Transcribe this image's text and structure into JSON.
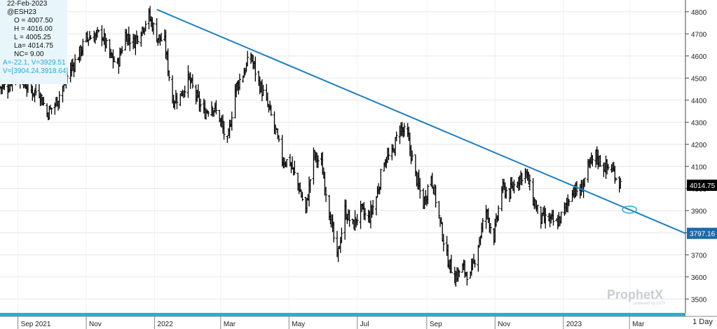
{
  "info_panel": {
    "date": "22-Feb-2023",
    "symbol": "@ESH23",
    "open": "O = 4007.50",
    "high": "H = 4016.00",
    "low": "L = 4005.25",
    "last": "La= 4014.75",
    "net_change": "NC= 9.00",
    "angle_value": "A=-22.1, V=3929.51",
    "value_range": "V=[3904.24,3918.64]"
  },
  "logo": {
    "name": "ProphetX",
    "tagline": "powered by DTN"
  },
  "timeframe_button": {
    "label": "1 Day"
  },
  "colors": {
    "price_bars": "#000000",
    "trendline": "#1b7fc0",
    "price_tag_bg": "#000000",
    "trend_tag_bg": "#1b6aa8",
    "info_panel_bg": "#e8f6fb",
    "bottom_band": "#20b4c8"
  },
  "chart_data": {
    "type": "ohlc",
    "y_axis": {
      "min": 3450,
      "max": 4850,
      "ticks": [
        3500,
        3600,
        3700,
        3800,
        3900,
        4000,
        4100,
        4200,
        4300,
        4400,
        4500,
        4600,
        4700,
        4800
      ],
      "side": "right"
    },
    "x_axis": {
      "ticks": [
        "Sep 2021",
        "Nov",
        "2022",
        "Mar",
        "May",
        "Jul",
        "Sep",
        "Nov",
        "2023",
        "Mar"
      ]
    },
    "last_price_label": "4014.75",
    "trendline_label": "3797.16",
    "trendline": {
      "start": {
        "date": "2022-01-03",
        "value": 4810
      },
      "end": {
        "date": "2023-04-20",
        "value": 3797.16
      }
    },
    "series": [
      {
        "close_path": [
          [
            "2021-08-16",
            4460
          ],
          [
            "2021-08-23",
            4460
          ],
          [
            "2021-08-30",
            4530
          ],
          [
            "2021-09-06",
            4480
          ],
          [
            "2021-09-13",
            4440
          ],
          [
            "2021-09-20",
            4440
          ],
          [
            "2021-09-27",
            4340
          ],
          [
            "2021-10-04",
            4380
          ],
          [
            "2021-10-11",
            4460
          ],
          [
            "2021-10-18",
            4540
          ],
          [
            "2021-10-25",
            4600
          ],
          [
            "2021-11-01",
            4680
          ],
          [
            "2021-11-08",
            4690
          ],
          [
            "2021-11-15",
            4700
          ],
          [
            "2021-11-22",
            4600
          ],
          [
            "2021-11-29",
            4560
          ],
          [
            "2021-12-06",
            4700
          ],
          [
            "2021-12-13",
            4660
          ],
          [
            "2021-12-20",
            4720
          ],
          [
            "2021-12-27",
            4780
          ],
          [
            "2022-01-03",
            4690
          ],
          [
            "2022-01-10",
            4660
          ],
          [
            "2022-01-17",
            4400
          ],
          [
            "2022-01-24",
            4420
          ],
          [
            "2022-01-31",
            4500
          ],
          [
            "2022-02-07",
            4420
          ],
          [
            "2022-02-14",
            4340
          ],
          [
            "2022-02-21",
            4380
          ],
          [
            "2022-02-28",
            4320
          ],
          [
            "2022-03-07",
            4200
          ],
          [
            "2022-03-14",
            4450
          ],
          [
            "2022-03-21",
            4520
          ],
          [
            "2022-03-28",
            4600
          ],
          [
            "2022-04-04",
            4480
          ],
          [
            "2022-04-11",
            4390
          ],
          [
            "2022-04-18",
            4280
          ],
          [
            "2022-04-25",
            4130
          ],
          [
            "2022-05-02",
            4120
          ],
          [
            "2022-05-09",
            4020
          ],
          [
            "2022-05-16",
            3900
          ],
          [
            "2022-05-23",
            4150
          ],
          [
            "2022-05-30",
            4110
          ],
          [
            "2022-06-06",
            3900
          ],
          [
            "2022-06-13",
            3680
          ],
          [
            "2022-06-20",
            3900
          ],
          [
            "2022-06-27",
            3830
          ],
          [
            "2022-07-04",
            3900
          ],
          [
            "2022-07-11",
            3860
          ],
          [
            "2022-07-18",
            3960
          ],
          [
            "2022-07-25",
            4130
          ],
          [
            "2022-08-01",
            4150
          ],
          [
            "2022-08-08",
            4280
          ],
          [
            "2022-08-15",
            4230
          ],
          [
            "2022-08-22",
            4060
          ],
          [
            "2022-08-29",
            3930
          ],
          [
            "2022-09-05",
            4060
          ],
          [
            "2022-09-12",
            3870
          ],
          [
            "2022-09-19",
            3690
          ],
          [
            "2022-09-26",
            3600
          ],
          [
            "2022-10-03",
            3640
          ],
          [
            "2022-10-10",
            3600
          ],
          [
            "2022-10-17",
            3750
          ],
          [
            "2022-10-24",
            3900
          ],
          [
            "2022-10-31",
            3780
          ],
          [
            "2022-11-07",
            4000
          ],
          [
            "2022-11-14",
            3980
          ],
          [
            "2022-11-21",
            4040
          ],
          [
            "2022-11-28",
            4080
          ],
          [
            "2022-12-05",
            3950
          ],
          [
            "2022-12-12",
            3860
          ],
          [
            "2022-12-19",
            3860
          ],
          [
            "2022-12-26",
            3840
          ],
          [
            "2023-01-02",
            3900
          ],
          [
            "2023-01-09",
            4000
          ],
          [
            "2023-01-16",
            3980
          ],
          [
            "2023-01-23",
            4090
          ],
          [
            "2023-01-30",
            4150
          ],
          [
            "2023-02-06",
            4100
          ],
          [
            "2023-02-13",
            4090
          ],
          [
            "2023-02-22",
            4014.75
          ]
        ]
      }
    ]
  }
}
